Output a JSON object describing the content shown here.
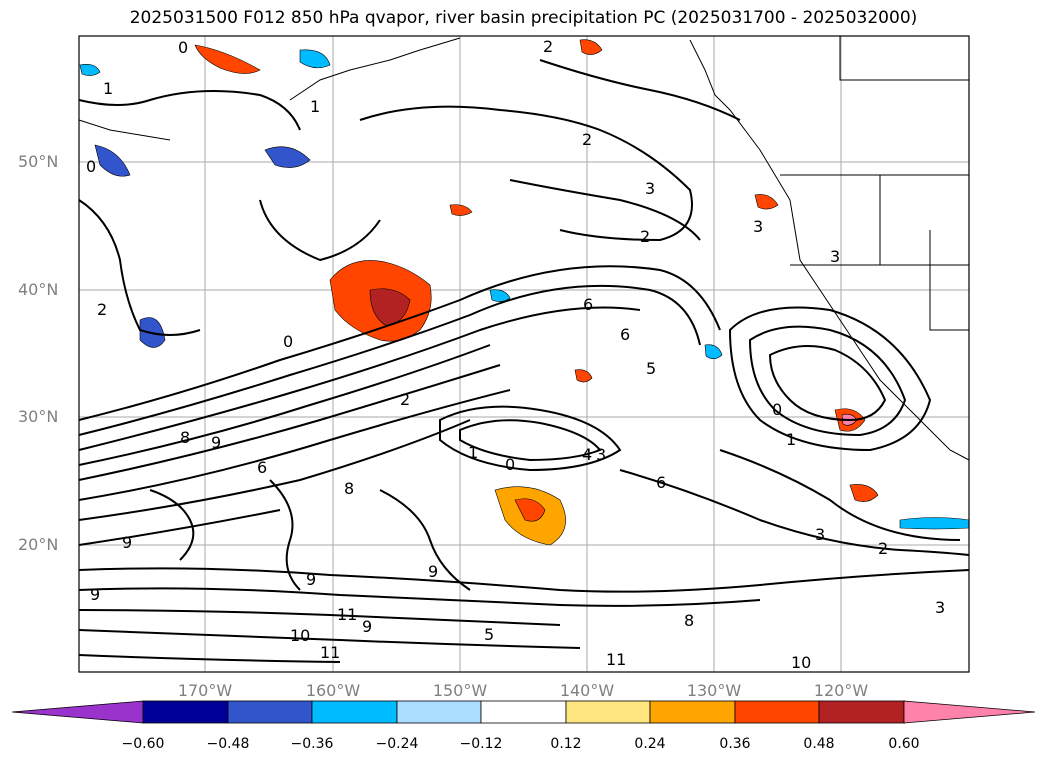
{
  "title": "2025031500 F012 850 hPa qvapor, river basin precipitation PC (2025031700 - 2025032000)",
  "lat_labels": [
    "50°N",
    "40°N",
    "30°N",
    "20°N"
  ],
  "lon_labels": [
    "170°W",
    "160°W",
    "150°W",
    "140°W",
    "130°W",
    "120°W"
  ],
  "contour_labels": [
    "0",
    "2",
    "1",
    "1",
    "2",
    "2",
    "3",
    "3",
    "2",
    "3",
    "0",
    "0",
    "2",
    "6",
    "6",
    "5",
    "0",
    "1",
    "8",
    "9",
    "6",
    "8",
    "1",
    "0",
    "4",
    "3",
    "6",
    "3",
    "2",
    "3",
    "9",
    "9",
    "9",
    "11",
    "10",
    "11",
    "9",
    "11",
    "10",
    "5",
    "8",
    "9"
  ],
  "colorbar": {
    "colors": [
      "#9933cc",
      "#000099",
      "#3355cc",
      "#00bbff",
      "#aaddff",
      "#ffffff",
      "#ffe680",
      "#ffa500",
      "#ff4500",
      "#b22222",
      "#ff82aa"
    ],
    "ticks": [
      "−0.60",
      "−0.48",
      "−0.36",
      "−0.24",
      "−0.12",
      "0.12",
      "0.24",
      "0.36",
      "0.48",
      "0.60"
    ]
  }
}
